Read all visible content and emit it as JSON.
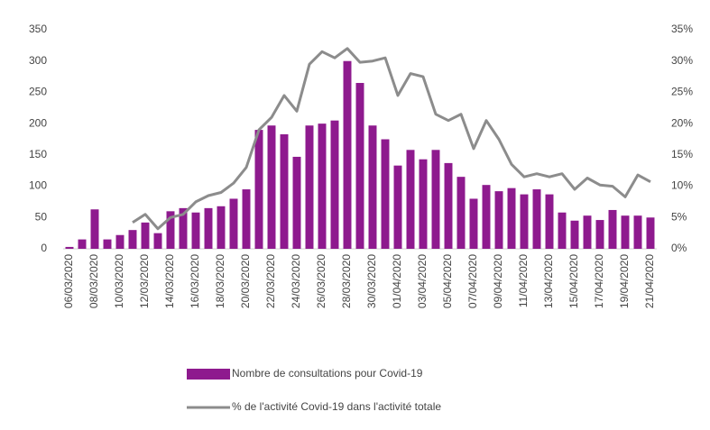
{
  "chart_data": {
    "type": "bar",
    "categories": [
      "06/03/2020",
      null,
      "08/03/2020",
      null,
      "10/03/2020",
      null,
      "12/03/2020",
      null,
      "14/03/2020",
      null,
      "16/03/2020",
      null,
      "18/03/2020",
      null,
      "20/03/2020",
      null,
      "22/03/2020",
      null,
      "24/03/2020",
      null,
      "26/03/2020",
      null,
      "28/03/2020",
      null,
      "30/03/2020",
      null,
      "01/04/2020",
      null,
      "03/04/2020",
      null,
      "05/04/2020",
      null,
      "07/04/2020",
      null,
      "09/04/2020",
      null,
      "11/04/2020",
      null,
      "13/04/2020",
      null,
      "15/04/2020",
      null,
      "17/04/2020",
      null,
      "19/04/2020",
      null,
      "21/04/2020"
    ],
    "series": [
      {
        "name": "Nombre de consultations pour Covid-19",
        "type": "bar",
        "color": "#8e1a8e",
        "values": [
          3,
          15,
          63,
          15,
          22,
          30,
          42,
          25,
          60,
          65,
          58,
          65,
          68,
          80,
          95,
          190,
          197,
          183,
          147,
          197,
          200,
          205,
          300,
          265,
          197,
          175,
          133,
          158,
          143,
          158,
          137,
          115,
          80,
          102,
          92,
          97,
          87,
          95,
          87,
          58,
          45,
          53,
          46,
          62,
          53,
          53,
          50
        ]
      },
      {
        "name": "% de l'activité Covid-19 dans l'activité totale",
        "type": "line",
        "axis": "y2",
        "color": "#8c8c8c",
        "values": [
          null,
          null,
          null,
          null,
          null,
          4.2,
          5.5,
          3.2,
          5,
          5.5,
          7.5,
          8.5,
          9,
          10.5,
          13,
          19,
          21,
          24.5,
          22,
          29.5,
          31.5,
          30.5,
          32,
          29.8,
          30,
          30.5,
          24.5,
          28,
          27.5,
          21.5,
          20.5,
          21.5,
          16,
          20.5,
          17.5,
          13.5,
          11.5,
          12,
          11.5,
          12,
          9.5,
          11.3,
          10.2,
          10,
          8.3,
          11.8,
          10.7
        ]
      }
    ],
    "ylim": [
      0,
      350
    ],
    "yticks": [
      0,
      50,
      100,
      150,
      200,
      250,
      300,
      350
    ],
    "y2lim": [
      0,
      35
    ],
    "y2ticks": [
      {
        "value": 0,
        "label": "0%"
      },
      {
        "value": 5,
        "label": "5%"
      },
      {
        "value": 10,
        "label": "10%"
      },
      {
        "value": 15,
        "label": "15%"
      },
      {
        "value": 20,
        "label": "20%"
      },
      {
        "value": 25,
        "label": "25%"
      },
      {
        "value": 30,
        "label": "30%"
      },
      {
        "value": 35,
        "label": "35%"
      }
    ],
    "legend": "bottom"
  }
}
